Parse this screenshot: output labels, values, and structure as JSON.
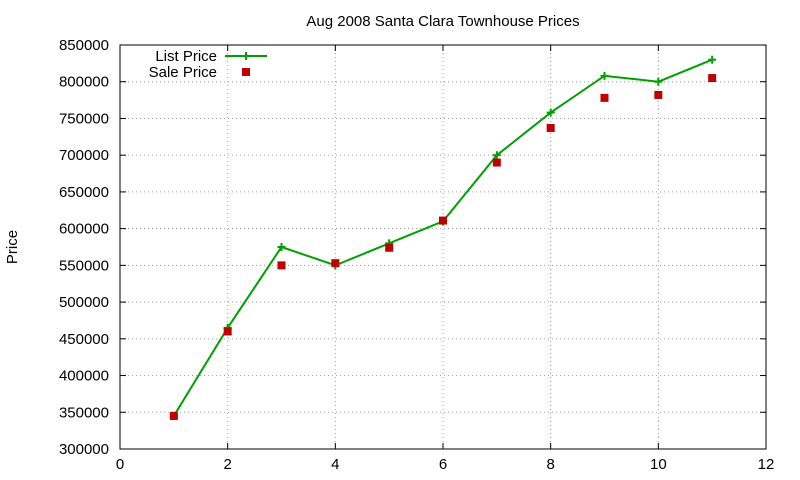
{
  "chart_data": {
    "type": "line",
    "title": "Aug 2008 Santa Clara Townhouse Prices",
    "xlabel": "",
    "ylabel": "Price",
    "xlim": [
      0,
      12
    ],
    "ylim": [
      300000,
      850000
    ],
    "xticks": [
      0,
      2,
      4,
      6,
      8,
      10,
      12
    ],
    "yticks": [
      300000,
      350000,
      400000,
      450000,
      500000,
      550000,
      600000,
      650000,
      700000,
      750000,
      800000,
      850000
    ],
    "grid": true,
    "legend_position": "top-left",
    "series": [
      {
        "name": "List Price",
        "style": "lines+points",
        "marker": "plus",
        "color": "#00a000",
        "x": [
          1,
          2,
          3,
          4,
          5,
          6,
          7,
          8,
          9,
          10,
          11
        ],
        "y": [
          345000,
          465000,
          575000,
          550000,
          580000,
          610000,
          700000,
          758000,
          808000,
          800000,
          830000
        ]
      },
      {
        "name": "Sale Price",
        "style": "points",
        "marker": "square",
        "color": "#c00000",
        "x": [
          1,
          2,
          3,
          4,
          5,
          6,
          7,
          8,
          9,
          10,
          11
        ],
        "y": [
          345000,
          460000,
          550000,
          553000,
          574000,
          611000,
          690000,
          737000,
          778000,
          782000,
          805000
        ]
      }
    ]
  }
}
